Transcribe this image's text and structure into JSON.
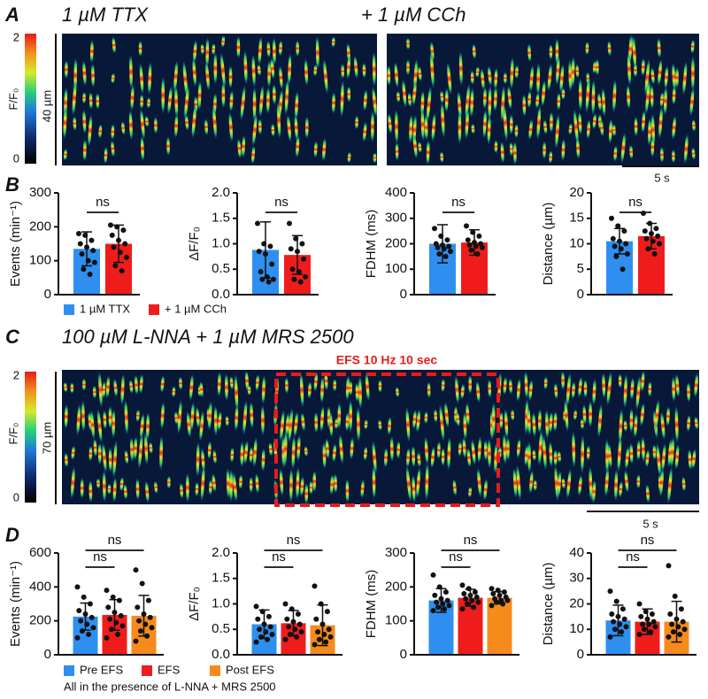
{
  "panels": {
    "A": {
      "letter": "A",
      "conditions": [
        "1 µM TTX",
        "+ 1 µM CCh"
      ],
      "colorbar_label": "F/F₀",
      "colorbar_ticks": [
        0,
        2
      ],
      "length_label": "40 µm",
      "time_label": "5 s"
    },
    "B": {
      "letter": "B",
      "legend": [
        {
          "name": "1 µM TTX",
          "color": "#2e8ff0"
        },
        {
          "name": "+ 1 µM CCh",
          "color": "#f01c1c"
        }
      ]
    },
    "C": {
      "letter": "C",
      "title": "100 µM L-NNA + 1 µM MRS 2500",
      "stim_label": "EFS 10 Hz 10 sec",
      "colorbar_label": "F/F₀",
      "colorbar_ticks": [
        0,
        2
      ],
      "length_label": "70 µm",
      "time_label": "5 s"
    },
    "D": {
      "letter": "D",
      "legend": [
        {
          "name": "Pre EFS",
          "color": "#2e8ff0"
        },
        {
          "name": "EFS",
          "color": "#f01c1c"
        },
        {
          "name": "Post EFS",
          "color": "#f78a1c"
        }
      ],
      "note": "All in the presence of L-NNA + MRS 2500"
    }
  },
  "chart_data": [
    {
      "type": "bar",
      "ylabel": "Events (min⁻¹)",
      "ylim": [
        0,
        300
      ],
      "yticks": [
        0,
        100,
        200,
        300
      ],
      "comparisons": [
        "ns"
      ],
      "series": [
        {
          "color": "#2e8ff0",
          "values": [
            135
          ],
          "errors": [
            50
          ],
          "points": [
            180,
            175,
            160,
            150,
            140,
            130,
            120,
            100,
            95,
            75,
            60
          ]
        },
        {
          "color": "#f01c1c",
          "values": [
            150
          ],
          "errors": [
            55
          ],
          "points": [
            205,
            200,
            190,
            175,
            160,
            150,
            140,
            125,
            110,
            85,
            70
          ]
        }
      ]
    },
    {
      "type": "bar",
      "ylabel": "ΔF/F₀",
      "ylim": [
        0,
        2
      ],
      "yticks": [
        {
          "value": 0,
          "label": "0.0"
        },
        {
          "value": 0.5,
          "label": "0.5"
        },
        {
          "value": 1,
          "label": "1.0"
        },
        {
          "value": 1.5,
          "label": "1.5"
        },
        {
          "value": 2,
          "label": "2.0"
        }
      ],
      "comparisons": [
        "ns"
      ],
      "series": [
        {
          "color": "#2e8ff0",
          "values": [
            0.88
          ],
          "errors": [
            0.55
          ],
          "points": [
            1.4,
            1.0,
            0.95,
            0.85,
            0.8,
            0.6,
            0.45,
            0.35,
            0.3,
            0.3,
            0.25
          ]
        },
        {
          "color": "#f01c1c",
          "values": [
            0.78
          ],
          "errors": [
            0.38
          ],
          "points": [
            1.4,
            1.1,
            1.0,
            0.9,
            0.85,
            0.7,
            0.5,
            0.45,
            0.35,
            0.3,
            0.25
          ]
        }
      ]
    },
    {
      "type": "bar",
      "ylabel": "FDHM (ms)",
      "ylim": [
        0,
        400
      ],
      "yticks": [
        0,
        100,
        200,
        300,
        400
      ],
      "comparisons": [
        "ns"
      ],
      "series": [
        {
          "color": "#2e8ff0",
          "values": [
            200
          ],
          "errors": [
            75
          ],
          "points": [
            260,
            230,
            215,
            200,
            195,
            190,
            185,
            180,
            170,
            160,
            150
          ]
        },
        {
          "color": "#f01c1c",
          "values": [
            205
          ],
          "errors": [
            50
          ],
          "points": [
            270,
            245,
            230,
            215,
            205,
            200,
            195,
            190,
            185,
            175,
            160
          ]
        }
      ]
    },
    {
      "type": "bar",
      "ylabel": "Distance (µm)",
      "ylim": [
        0,
        20
      ],
      "yticks": [
        0,
        5,
        10,
        15,
        20
      ],
      "comparisons": [
        "ns"
      ],
      "series": [
        {
          "color": "#2e8ff0",
          "values": [
            10.5
          ],
          "errors": [
            2.5
          ],
          "points": [
            15,
            13.5,
            12.5,
            11,
            10.5,
            10,
            9.5,
            9,
            8,
            7.5,
            5
          ]
        },
        {
          "color": "#f01c1c",
          "values": [
            11.5
          ],
          "errors": [
            2.5
          ],
          "points": [
            16,
            14,
            13,
            12.5,
            12,
            11.5,
            11,
            10.5,
            10,
            9,
            8
          ]
        }
      ]
    },
    {
      "type": "bar",
      "ylabel": "Events (min⁻¹)",
      "ylim": [
        0,
        600
      ],
      "yticks": [
        0,
        200,
        400,
        600
      ],
      "comparisons": [
        "ns",
        "ns"
      ],
      "series": [
        {
          "color": "#2e8ff0",
          "values": [
            225
          ],
          "errors": [
            80
          ],
          "points": [
            400,
            340,
            300,
            260,
            240,
            220,
            200,
            180,
            160,
            140,
            120,
            100
          ]
        },
        {
          "color": "#f01c1c",
          "values": [
            235
          ],
          "errors": [
            90
          ],
          "points": [
            380,
            340,
            320,
            280,
            250,
            230,
            210,
            190,
            170,
            150,
            120,
            100
          ]
        },
        {
          "color": "#f78a1c",
          "values": [
            230
          ],
          "errors": [
            120
          ],
          "points": [
            500,
            420,
            320,
            280,
            240,
            220,
            200,
            180,
            160,
            140,
            110,
            80
          ]
        }
      ]
    },
    {
      "type": "bar",
      "ylabel": "ΔF/F₀",
      "ylim": [
        0,
        2
      ],
      "yticks": [
        {
          "value": 0,
          "label": "0.0"
        },
        {
          "value": 0.5,
          "label": "0.5"
        },
        {
          "value": 1,
          "label": "1.0"
        },
        {
          "value": 1.5,
          "label": "1.5"
        },
        {
          "value": 2,
          "label": "2.0"
        }
      ],
      "comparisons": [
        "ns",
        "ns"
      ],
      "series": [
        {
          "color": "#2e8ff0",
          "values": [
            0.6
          ],
          "errors": [
            0.28
          ],
          "points": [
            0.95,
            0.85,
            0.75,
            0.7,
            0.6,
            0.55,
            0.5,
            0.45,
            0.4,
            0.35,
            0.3,
            0.25
          ]
        },
        {
          "color": "#f01c1c",
          "values": [
            0.62
          ],
          "errors": [
            0.25
          ],
          "points": [
            1.0,
            0.9,
            0.8,
            0.7,
            0.65,
            0.6,
            0.55,
            0.5,
            0.45,
            0.4,
            0.35,
            0.3
          ]
        },
        {
          "color": "#f78a1c",
          "values": [
            0.58
          ],
          "errors": [
            0.4
          ],
          "points": [
            1.35,
            1.0,
            0.85,
            0.7,
            0.6,
            0.5,
            0.45,
            0.4,
            0.35,
            0.3,
            0.25,
            0.2
          ]
        }
      ]
    },
    {
      "type": "bar",
      "ylabel": "FDHM (ms)",
      "ylim": [
        0,
        300
      ],
      "yticks": [
        0,
        100,
        200,
        300
      ],
      "comparisons": [
        "ns",
        "ns"
      ],
      "series": [
        {
          "color": "#2e8ff0",
          "values": [
            160
          ],
          "errors": [
            35
          ],
          "points": [
            235,
            200,
            185,
            175,
            165,
            160,
            155,
            150,
            145,
            140,
            135,
            130
          ]
        },
        {
          "color": "#f01c1c",
          "values": [
            168
          ],
          "errors": [
            25
          ],
          "points": [
            205,
            195,
            185,
            180,
            175,
            170,
            165,
            160,
            155,
            150,
            140,
            135
          ]
        },
        {
          "color": "#f78a1c",
          "values": [
            168
          ],
          "errors": [
            18
          ],
          "points": [
            195,
            190,
            185,
            180,
            175,
            170,
            165,
            160,
            160,
            155,
            150,
            145
          ]
        }
      ]
    },
    {
      "type": "bar",
      "ylabel": "Distance (µm)",
      "ylim": [
        0,
        40
      ],
      "yticks": [
        0,
        10,
        20,
        30,
        40
      ],
      "comparisons": [
        "ns",
        "ns"
      ],
      "series": [
        {
          "color": "#2e8ff0",
          "values": [
            13.5
          ],
          "errors": [
            6
          ],
          "points": [
            25,
            21,
            18,
            16,
            15,
            14,
            13,
            12,
            11,
            10,
            9,
            7
          ]
        },
        {
          "color": "#f01c1c",
          "values": [
            13
          ],
          "errors": [
            5
          ],
          "points": [
            20,
            17,
            16,
            15,
            14,
            13,
            12,
            12,
            11,
            10,
            9,
            8
          ]
        },
        {
          "color": "#f78a1c",
          "values": [
            13
          ],
          "errors": [
            8
          ],
          "points": [
            35,
            23,
            18,
            16,
            14,
            13,
            12,
            11,
            10,
            9,
            8,
            7
          ]
        }
      ]
    }
  ]
}
